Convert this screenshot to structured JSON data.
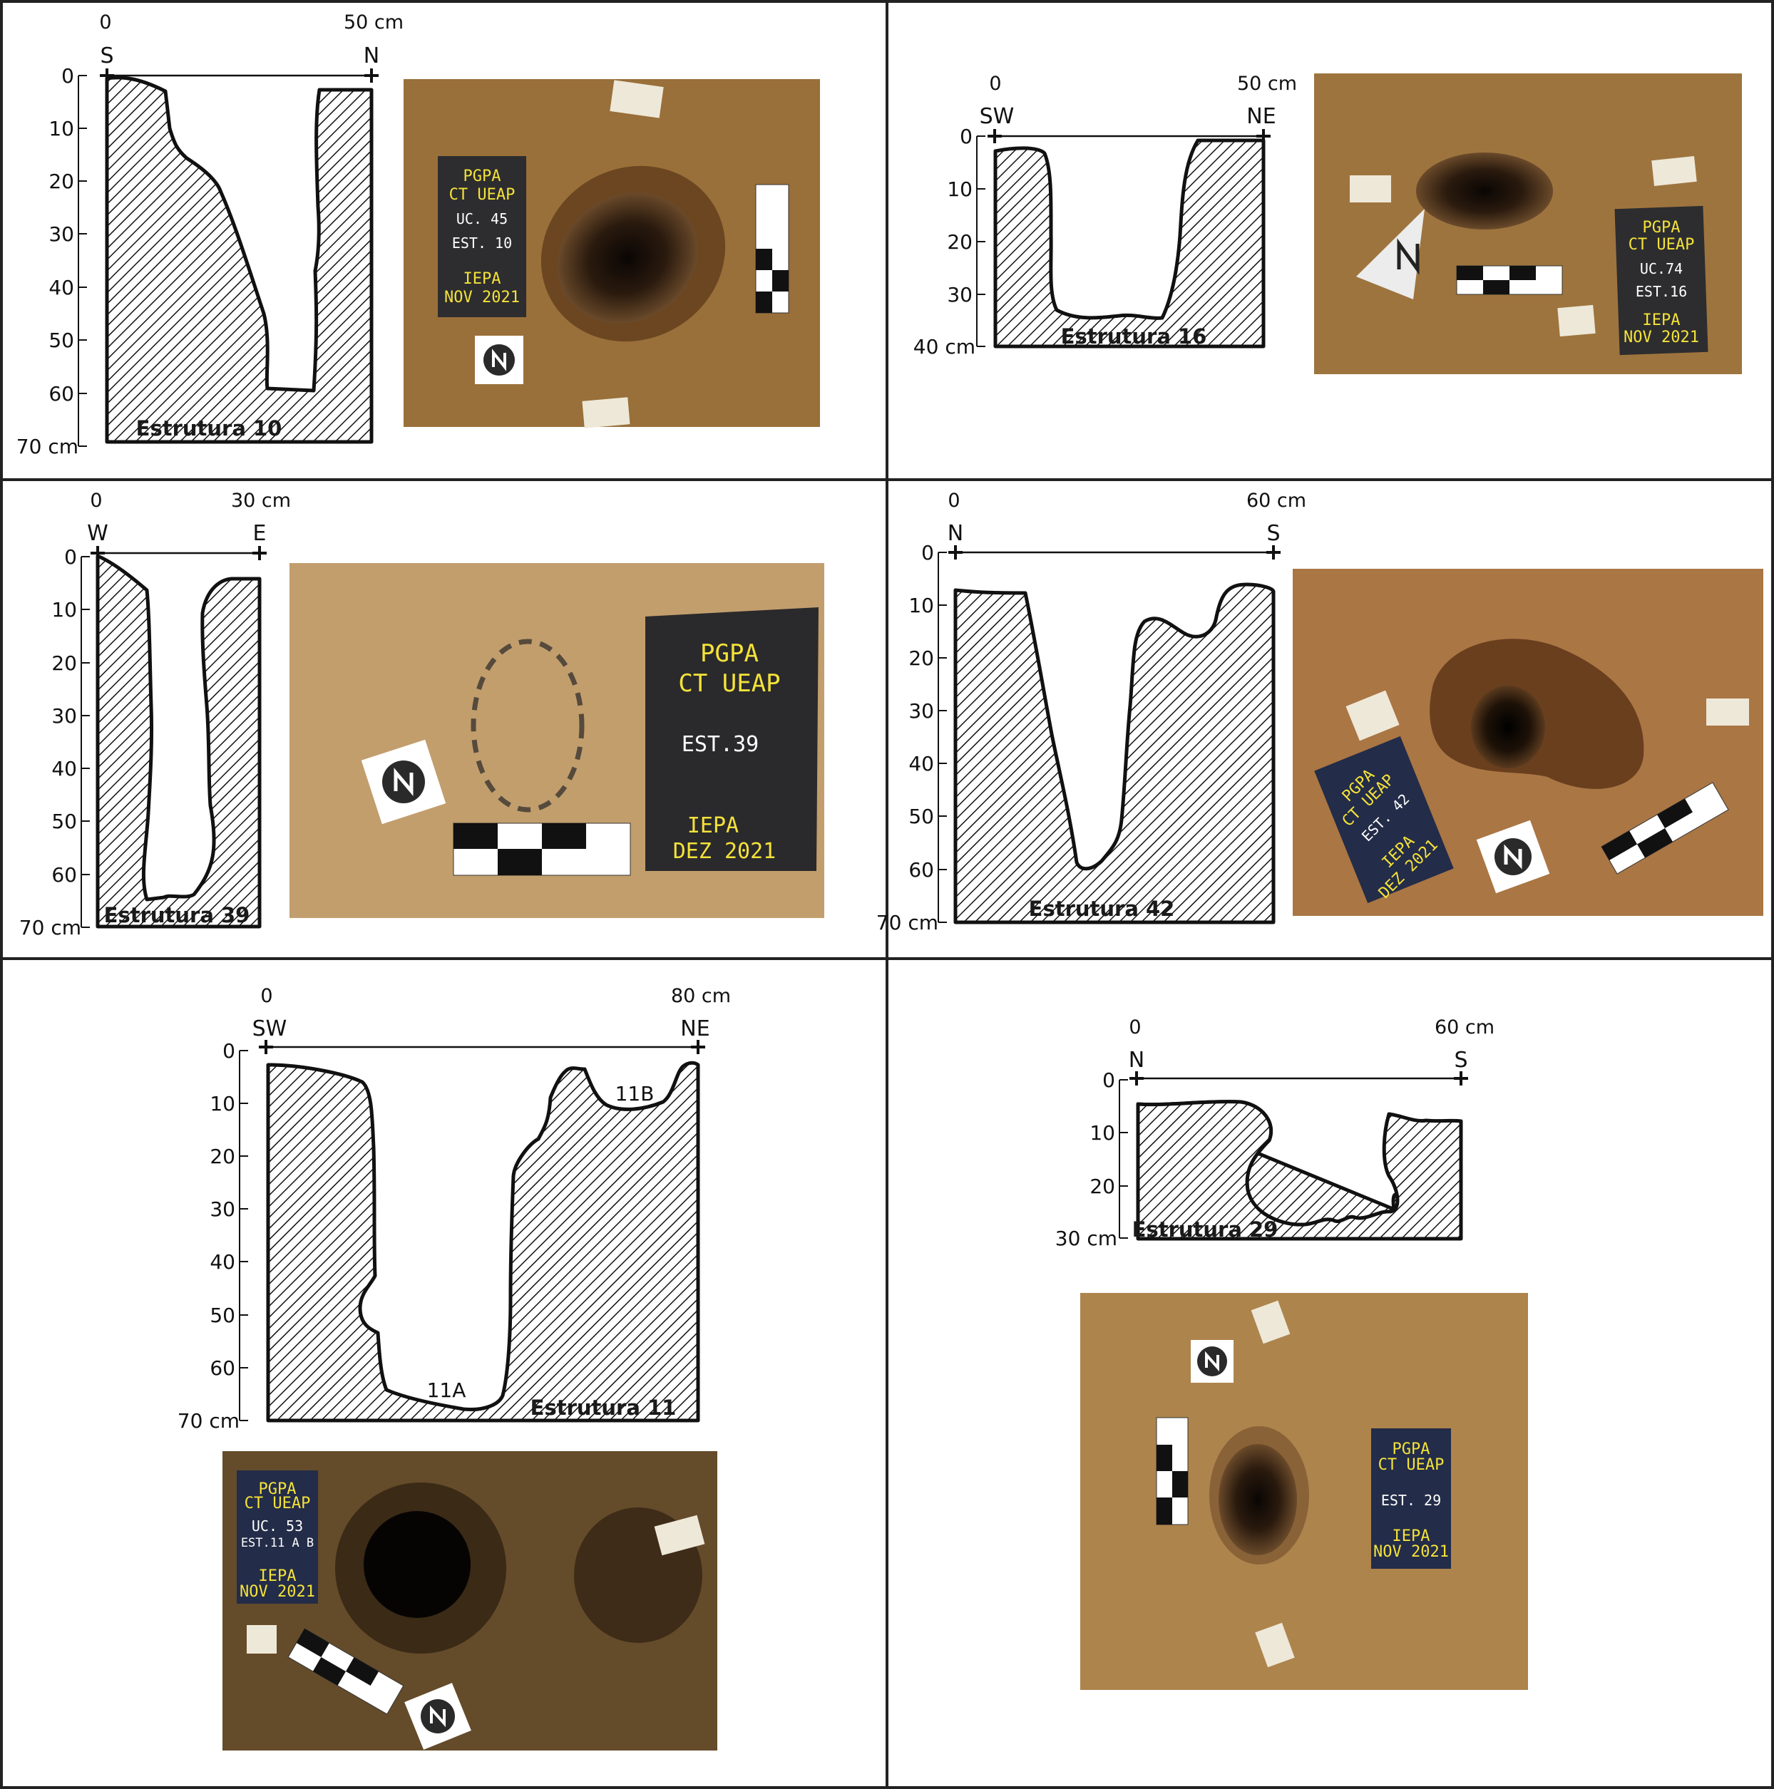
{
  "panels": [
    {
      "id": "est10",
      "title": "Estrutura 10",
      "scale_start": "0",
      "scale_end": "50 cm",
      "dir_left": "S",
      "dir_right": "N",
      "depth_ticks": [
        "0",
        "10",
        "20",
        "30",
        "40",
        "50",
        "60",
        "70 cm"
      ],
      "photo_sign": [
        "PGPA",
        "CT UEAP",
        "UC. 45",
        "EST. 10",
        "IEPA",
        "NOV 2021"
      ]
    },
    {
      "id": "est16",
      "title": "Estrutura 16",
      "scale_start": "0",
      "scale_end": "50 cm",
      "dir_left": "SW",
      "dir_right": "NE",
      "depth_ticks": [
        "0",
        "10",
        "20",
        "30",
        "40 cm"
      ],
      "photo_sign": [
        "PGPA",
        "CT UEAP",
        "UC.74",
        "EST.16",
        "IEPA",
        "NOV 2021"
      ]
    },
    {
      "id": "est39",
      "title": "Estrutura 39",
      "scale_start": "0",
      "scale_end": "30 cm",
      "dir_left": "W",
      "dir_right": "E",
      "depth_ticks": [
        "0",
        "10",
        "20",
        "30",
        "40",
        "50",
        "60",
        "70 cm"
      ],
      "photo_sign": [
        "PGPA",
        "CT UEAP",
        "EST.39",
        "IEPA",
        "DEZ 2021"
      ]
    },
    {
      "id": "est42",
      "title": "Estrutura 42",
      "scale_start": "0",
      "scale_end": "60 cm",
      "dir_left": "N",
      "dir_right": "S",
      "depth_ticks": [
        "0",
        "10",
        "20",
        "30",
        "40",
        "50",
        "60",
        "70 cm"
      ],
      "photo_sign": [
        "PGPA",
        "CT UEAP",
        "EST. 42",
        "IEPA",
        "DEZ 2021"
      ]
    },
    {
      "id": "est11",
      "title": "Estrutura 11",
      "scale_start": "0",
      "scale_end": "80 cm",
      "dir_left": "SW",
      "dir_right": "NE",
      "depth_ticks": [
        "0",
        "10",
        "20",
        "30",
        "40",
        "50",
        "60",
        "70 cm"
      ],
      "label_a": "11A",
      "label_b": "11B",
      "photo_sign": [
        "PGPA",
        "CT UEAP",
        "UC. 53",
        "EST.11 A B",
        "IEPA",
        "NOV 2021"
      ]
    },
    {
      "id": "est29",
      "title": "Estrutura 29",
      "scale_start": "0",
      "scale_end": "60 cm",
      "dir_left": "N",
      "dir_right": "S",
      "depth_ticks": [
        "0",
        "10",
        "20",
        "30 cm"
      ],
      "photo_sign": [
        "PGPA",
        "CT UEAP",
        "EST. 29",
        "IEPA",
        "NOV 2021"
      ]
    }
  ]
}
